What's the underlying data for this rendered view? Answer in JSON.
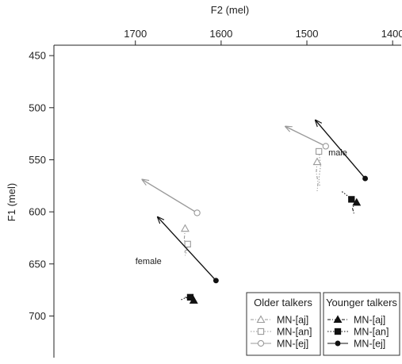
{
  "chart_data": {
    "type": "line",
    "x_label": "F2 (mel)",
    "y_label": "F1 (mel)",
    "x_axis": {
      "reversed": true,
      "range": [
        1795,
        1390
      ],
      "ticks": [
        1700,
        1600,
        1500,
        1400
      ],
      "position": "top"
    },
    "y_axis": {
      "reversed": true,
      "range": [
        440,
        740
      ],
      "ticks": [
        450,
        500,
        550,
        600,
        650,
        700
      ],
      "position": "left"
    },
    "grid": false,
    "annotations": [
      {
        "text": "male",
        "x": 1475,
        "y": 546
      },
      {
        "text": "female",
        "x": 1700,
        "y": 650
      }
    ],
    "legend": {
      "placement": "bottom-right",
      "groups": [
        {
          "title": "Older talkers",
          "entries": [
            {
              "label": "MN-[aj]",
              "series": "older-aj"
            },
            {
              "label": "MN-[an]",
              "series": "older-an"
            },
            {
              "label": "MN-[ej]",
              "series": "older-ej"
            }
          ]
        },
        {
          "title": "Younger talkers",
          "entries": [
            {
              "label": "MN-[aj]",
              "series": "younger-aj"
            },
            {
              "label": "MN-[an]",
              "series": "younger-an"
            },
            {
              "label": "MN-[ej]",
              "series": "younger-ej"
            }
          ]
        }
      ]
    },
    "series": [
      {
        "id": "older-aj",
        "group": "Older talkers",
        "marker": "triangle-open",
        "color": "#9a9a9a",
        "linestyle": "dashdot",
        "trajectories": [
          [
            [
              1488,
              552
            ],
            [
              1489,
              562
            ],
            [
              1487,
              572
            ],
            [
              1488,
              580
            ]
          ],
          [
            [
              1642,
              616
            ],
            [
              1643,
              626
            ],
            [
              1641,
              636
            ],
            [
              1643,
              640
            ]
          ]
        ]
      },
      {
        "id": "older-an",
        "group": "Older talkers",
        "marker": "square-open",
        "color": "#9a9a9a",
        "linestyle": "dotted",
        "trajectories": [
          [
            [
              1486,
              542
            ],
            [
              1484,
              556
            ],
            [
              1486,
              568
            ],
            [
              1485,
              576
            ]
          ],
          [
            [
              1639,
              631
            ],
            [
              1640,
              637
            ],
            [
              1642,
              642
            ]
          ]
        ]
      },
      {
        "id": "older-ej",
        "group": "Older talkers",
        "marker": "circle-open",
        "color": "#9a9a9a",
        "linestyle": "solid",
        "arrows": [
          [
            [
              1478,
              537
            ],
            [
              1525,
              518
            ]
          ],
          [
            [
              1628,
              601
            ],
            [
              1692,
              569
            ]
          ]
        ]
      },
      {
        "id": "younger-aj",
        "group": "Younger talkers",
        "marker": "triangle-filled",
        "color": "#111111",
        "linestyle": "dashdot",
        "trajectories": [
          [
            [
              1442,
              591
            ],
            [
              1447,
              596
            ],
            [
              1445,
              602
            ]
          ],
          [
            [
              1632,
              685
            ],
            [
              1637,
              683
            ],
            [
              1642,
              682
            ]
          ]
        ]
      },
      {
        "id": "younger-an",
        "group": "Younger talkers",
        "marker": "square-filled",
        "color": "#111111",
        "linestyle": "dotted",
        "trajectories": [
          [
            [
              1448,
              588
            ],
            [
              1455,
              583
            ],
            [
              1460,
              580
            ]
          ],
          [
            [
              1636,
              682
            ],
            [
              1643,
              683
            ],
            [
              1648,
              685
            ]
          ]
        ]
      },
      {
        "id": "younger-ej",
        "group": "Younger talkers",
        "marker": "circle-filled",
        "color": "#111111",
        "linestyle": "solid",
        "arrows": [
          [
            [
              1432,
              568
            ],
            [
              1490,
              512
            ]
          ],
          [
            [
              1606,
              666
            ],
            [
              1674,
              605
            ]
          ]
        ]
      }
    ]
  }
}
